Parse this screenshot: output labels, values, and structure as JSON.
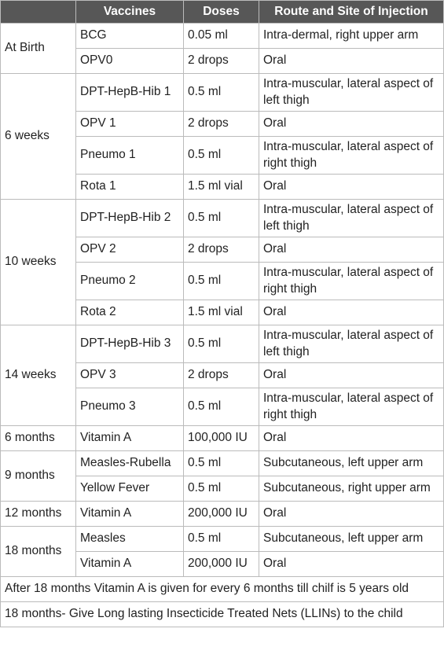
{
  "table": {
    "header": [
      "Vaccines",
      "Doses",
      "Route and Site of Injection"
    ],
    "groups": [
      {
        "age": "At Birth",
        "rows": [
          [
            "BCG",
            "0.05 ml",
            "Intra-dermal, right upper arm"
          ],
          [
            "OPV0",
            "2 drops",
            "Oral"
          ]
        ]
      },
      {
        "age": "6 weeks",
        "rows": [
          [
            "DPT-HepB-Hib 1",
            "0.5 ml",
            "Intra-muscular, lateral aspect of left thigh"
          ],
          [
            "OPV 1",
            "2 drops",
            "Oral"
          ],
          [
            "Pneumo 1",
            "0.5 ml",
            "Intra-muscular, lateral aspect of right thigh"
          ],
          [
            "Rota 1",
            "1.5 ml vial",
            "Oral"
          ]
        ]
      },
      {
        "age": "10 weeks",
        "rows": [
          [
            "DPT-HepB-Hib 2",
            "0.5 ml",
            "Intra-muscular, lateral aspect of left thigh"
          ],
          [
            "OPV 2",
            "2 drops",
            "Oral"
          ],
          [
            "Pneumo 2",
            "0.5 ml",
            "Intra-muscular, lateral aspect of right thigh"
          ],
          [
            "Rota 2",
            "1.5 ml vial",
            "Oral"
          ]
        ]
      },
      {
        "age": "14 weeks",
        "rows": [
          [
            "DPT-HepB-Hib 3",
            "0.5 ml",
            "Intra-muscular, lateral aspect of left thigh"
          ],
          [
            "OPV 3",
            "2 drops",
            "Oral"
          ],
          [
            "Pneumo 3",
            "0.5 ml",
            "Intra-muscular, lateral aspect of right thigh"
          ]
        ]
      },
      {
        "age": "6 months",
        "rows": [
          [
            "Vitamin A",
            "100,000 IU",
            "Oral"
          ]
        ]
      },
      {
        "age": "9 months",
        "rows": [
          [
            "Measles-Rubella",
            "0.5 ml",
            "Subcutaneous, left upper arm"
          ],
          [
            "Yellow Fever",
            "0.5 ml",
            "Subcutaneous, right upper arm"
          ]
        ]
      },
      {
        "age": "12 months",
        "rows": [
          [
            "Vitamin A",
            "200,000 IU",
            "Oral"
          ]
        ]
      },
      {
        "age": "18 months",
        "rows": [
          [
            "Measles",
            "0.5 ml",
            "Subcutaneous, left upper arm"
          ],
          [
            "Vitamin A",
            "200,000 IU",
            "Oral"
          ]
        ]
      }
    ],
    "notes": [
      "After 18 months Vitamin A is given for every 6 months till chilf is 5 years old",
      "18 months- Give Long lasting Insecticide Treated Nets (LLINs) to the child"
    ]
  }
}
